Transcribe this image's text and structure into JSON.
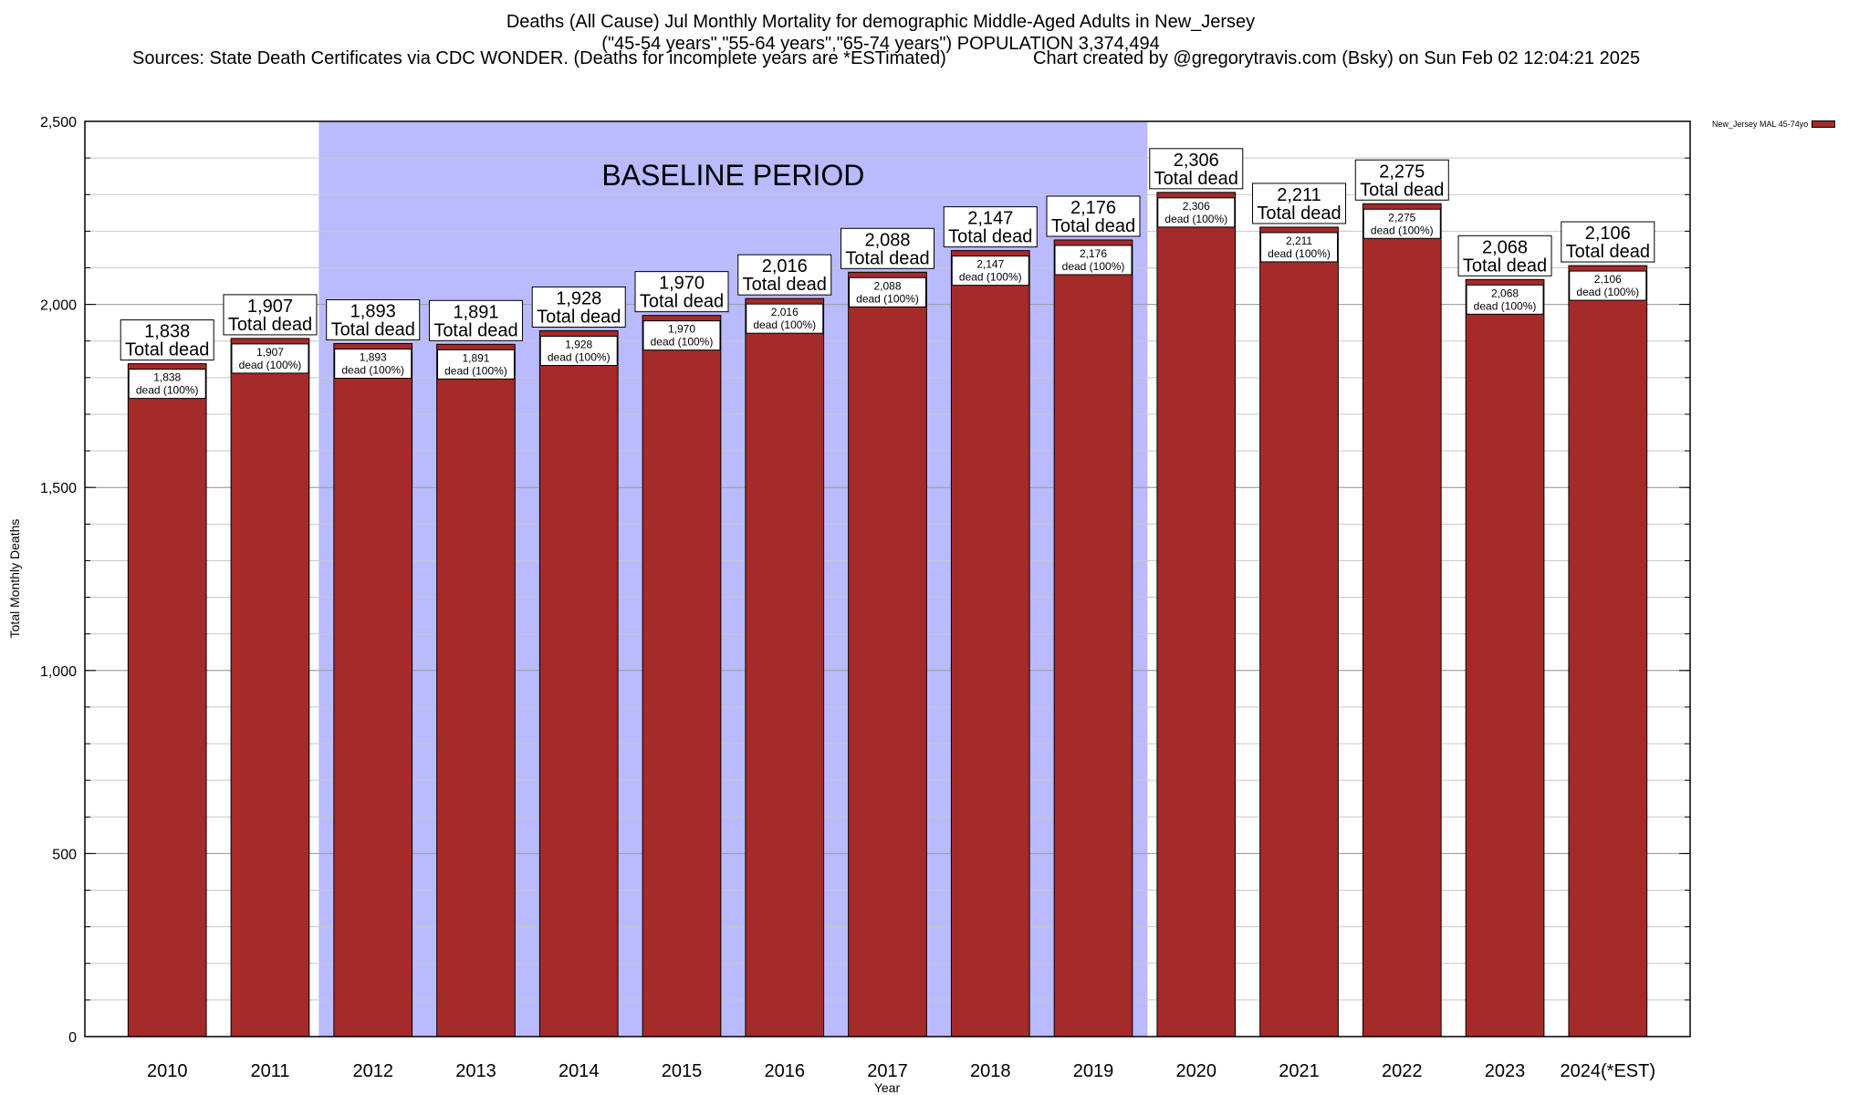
{
  "header": {
    "title_line1": "Deaths (All Cause) Jul Monthly Mortality for demographic Middle-Aged Adults in New_Jersey",
    "title_line2": "(\"45-54 years\",\"55-64 years\",\"65-74 years\") POPULATION 3,374,494",
    "sources": "Sources: State Death Certificates via CDC WONDER. (Deaths for incomplete years are *ESTimated)",
    "credit": "Chart created by @gregorytravis.com (Bsky) on Sun Feb 02 12:04:21 2025"
  },
  "chart_data": {
    "type": "bar",
    "xlabel": "Year",
    "ylabel": "Total Monthly Deaths",
    "ylim": [
      0,
      2500
    ],
    "yticks": [
      0,
      500,
      1000,
      1500,
      2000,
      2500
    ],
    "ytick_labels": [
      "0",
      "500",
      "1,000",
      "1,500",
      "2,000",
      "2,500"
    ],
    "grid": true,
    "legend_position": "top-right",
    "categories": [
      "2010",
      "2011",
      "2012",
      "2013",
      "2014",
      "2015",
      "2016",
      "2017",
      "2018",
      "2019",
      "2020",
      "2021",
      "2022",
      "2023",
      "2024(*EST)"
    ],
    "series": [
      {
        "name": "New_Jersey MAL 45-74yo",
        "color": "#a52a2a",
        "values": [
          1838,
          1907,
          1893,
          1891,
          1928,
          1970,
          2016,
          2088,
          2147,
          2176,
          2306,
          2211,
          2275,
          2068,
          2106
        ]
      }
    ],
    "top_labels": [
      "1,838",
      "1,907",
      "1,893",
      "1,891",
      "1,928",
      "1,970",
      "2,016",
      "2,088",
      "2,147",
      "2,176",
      "2,306",
      "2,211",
      "2,275",
      "2,068",
      "2,106"
    ],
    "top_label_suffix": "Total dead",
    "inner_label_suffix": "dead (100%)",
    "baseline": {
      "label": "BASELINE PERIOD",
      "start": "2012",
      "end": "2019",
      "color": "#babaff"
    }
  }
}
